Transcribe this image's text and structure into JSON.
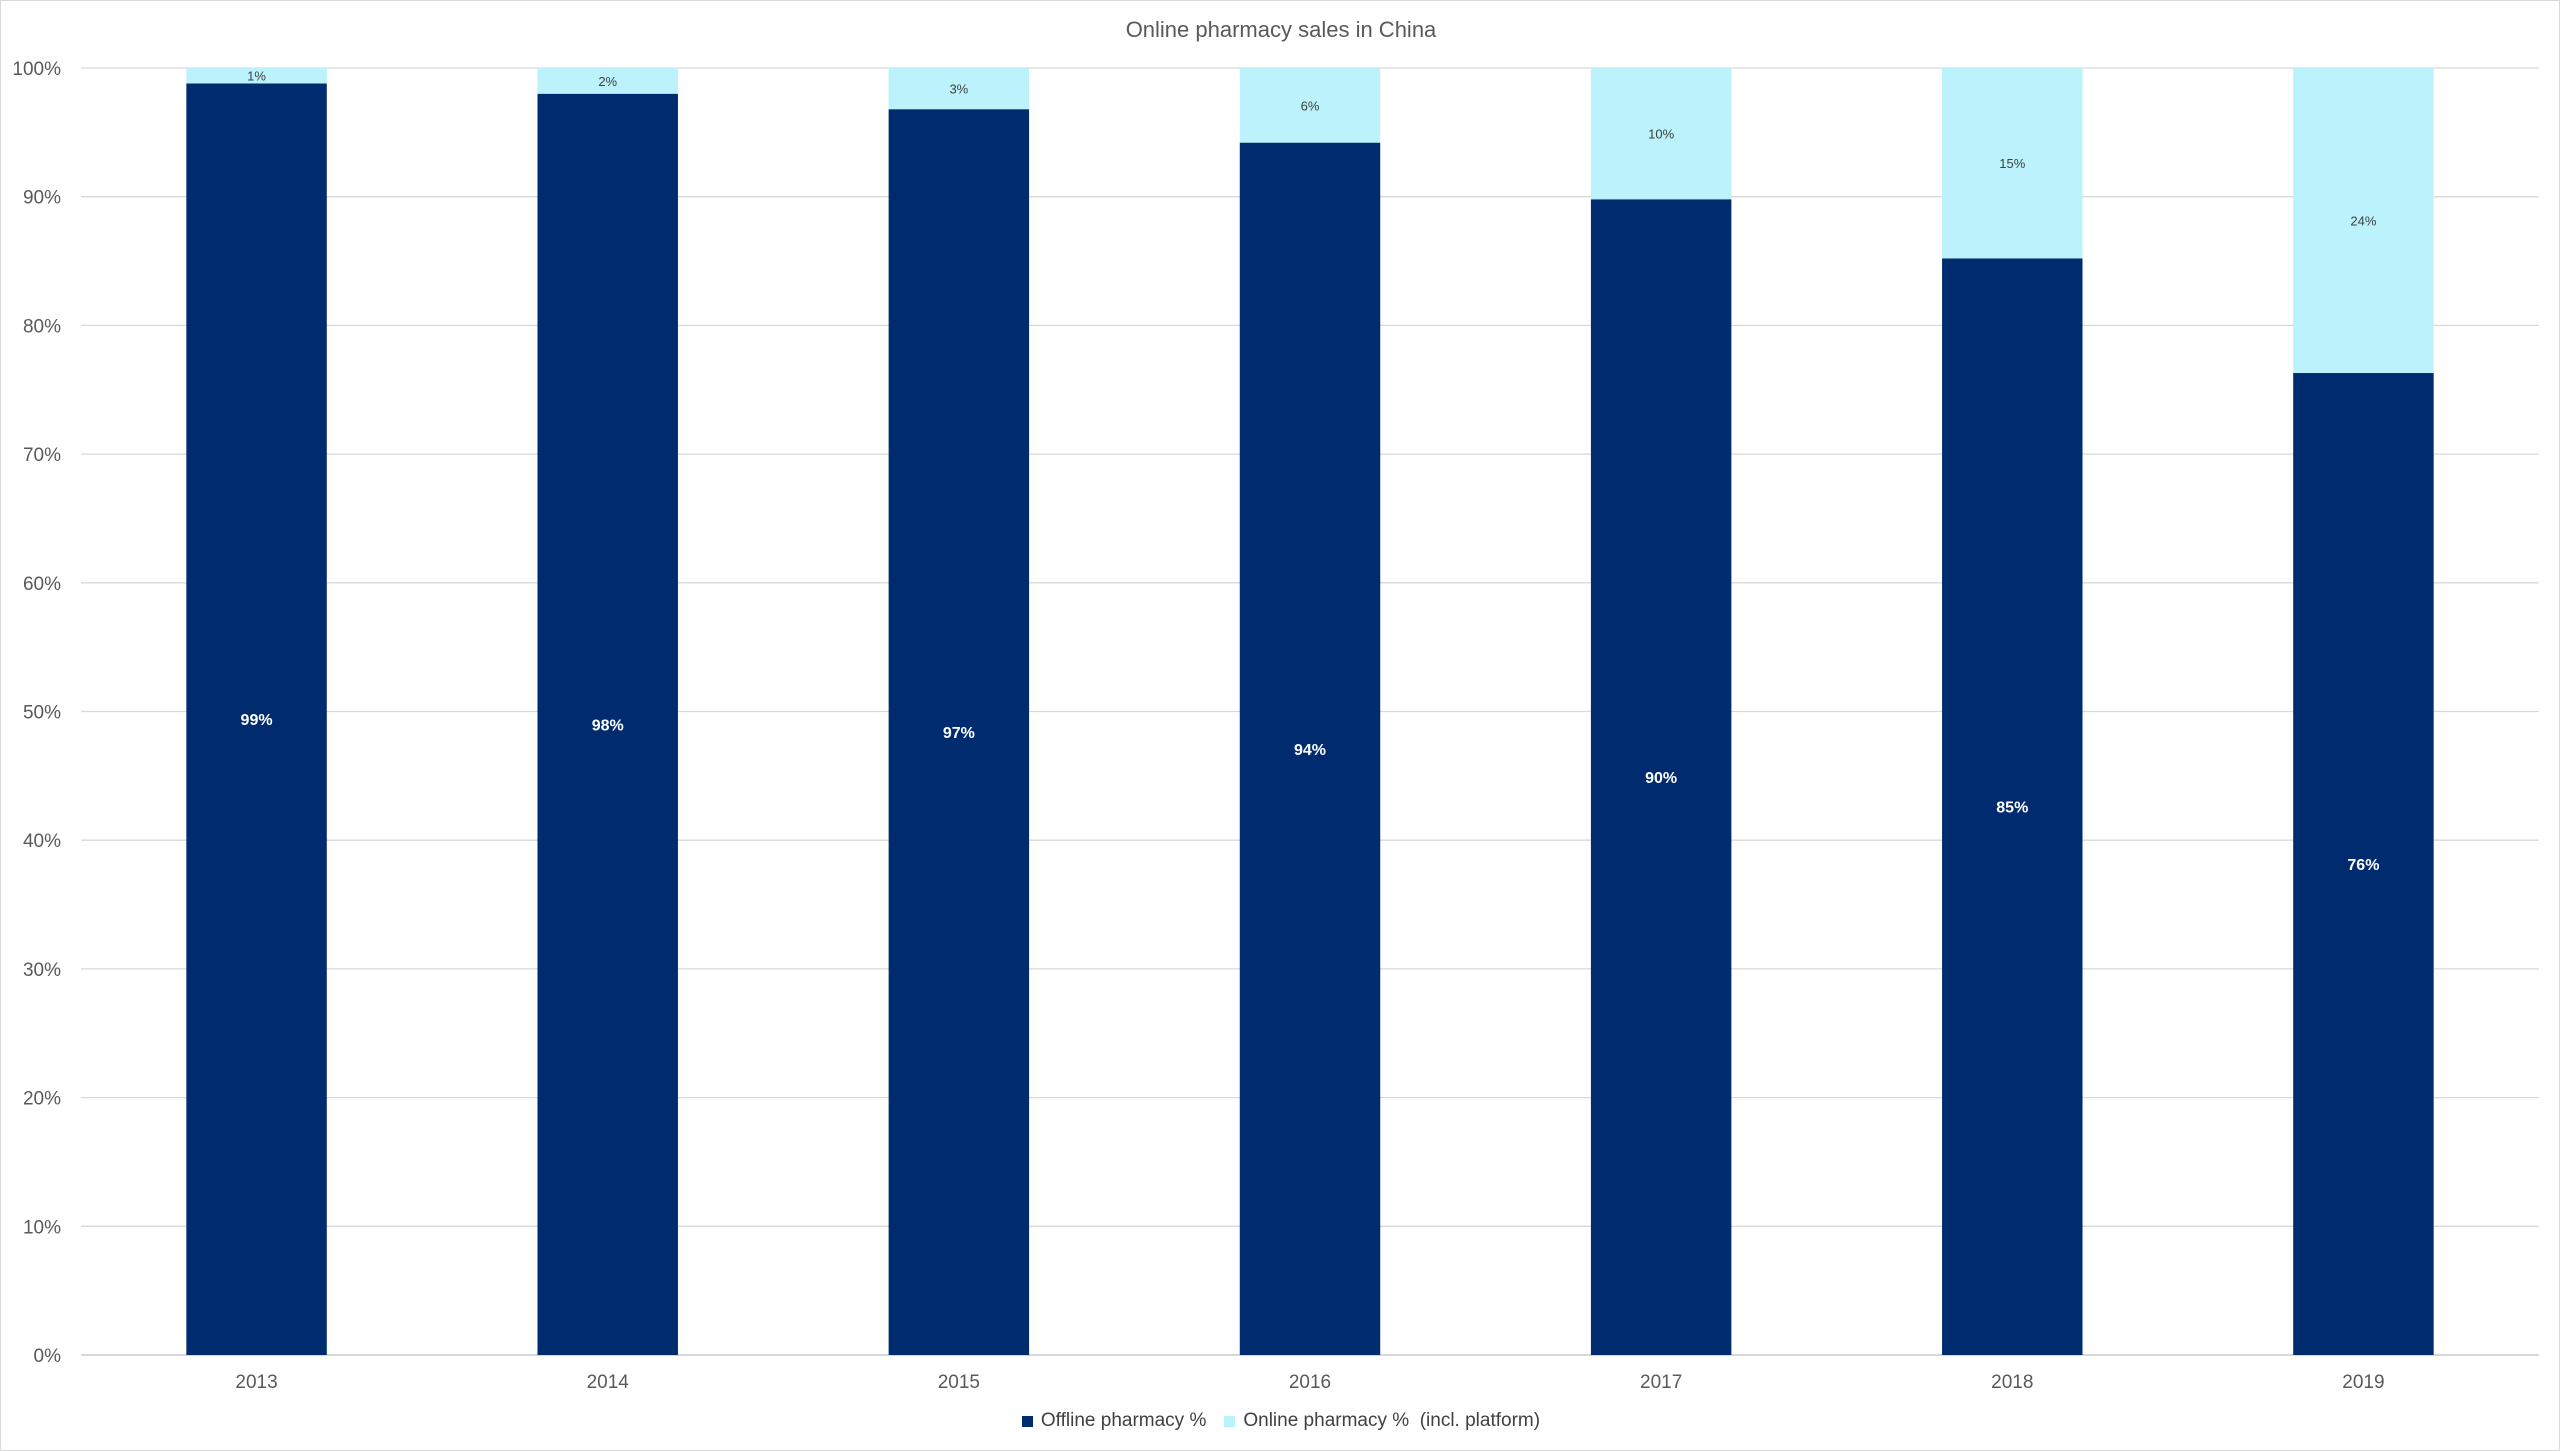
{
  "chart_data": {
    "type": "bar",
    "stacked": true,
    "title": "Online pharmacy sales in China",
    "categories": [
      "2013",
      "2014",
      "2015",
      "2016",
      "2017",
      "2018",
      "2019"
    ],
    "series": [
      {
        "name": "Offline pharmacy %",
        "color": "#002b6f",
        "values": [
          98.8,
          98.0,
          96.8,
          94.2,
          89.8,
          85.2,
          76.3
        ],
        "labels": [
          "99%",
          "98%",
          "97%",
          "94%",
          "90%",
          "85%",
          "76%"
        ],
        "label_color": "#ffffff"
      },
      {
        "name": "Online pharmacy %  (incl. platform)",
        "color": "#bbf2fb",
        "values": [
          1.2,
          2.0,
          3.2,
          5.8,
          10.2,
          14.8,
          23.7
        ],
        "labels": [
          "1%",
          "2%",
          "3%",
          "6%",
          "10%",
          "15%",
          "24%"
        ],
        "label_color": "#404040"
      }
    ],
    "ylim": [
      0,
      100
    ],
    "yticks": [
      "0%",
      "10%",
      "20%",
      "30%",
      "40%",
      "50%",
      "60%",
      "70%",
      "80%",
      "90%",
      "100%"
    ],
    "grid": true,
    "legend_position": "bottom"
  }
}
